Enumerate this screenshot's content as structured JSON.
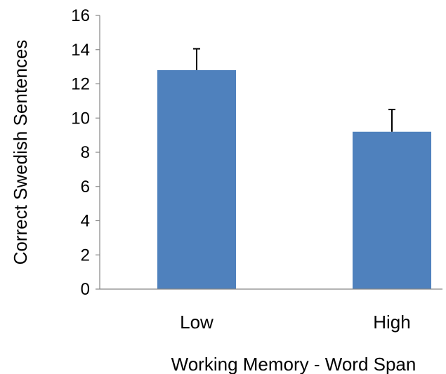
{
  "chart_data": {
    "type": "bar",
    "title": "",
    "xlabel": "Working Memory - Word Span",
    "ylabel": "Correct Swedish Sentences",
    "categories": [
      "Low",
      "High"
    ],
    "values": [
      12.8,
      9.2
    ],
    "error_plus": [
      1.25,
      1.3
    ],
    "ylim": [
      0,
      16
    ],
    "yticks": [
      0,
      2,
      4,
      6,
      8,
      10,
      12,
      14,
      16
    ],
    "ytick_labels": [
      "0",
      "2",
      "4",
      "6",
      "8",
      "10",
      "12",
      "14",
      "16"
    ],
    "grid": false,
    "legend": "none",
    "bar_color": "#4F81BD",
    "axis_color": "#868686",
    "error_bar_color": "#000000"
  }
}
